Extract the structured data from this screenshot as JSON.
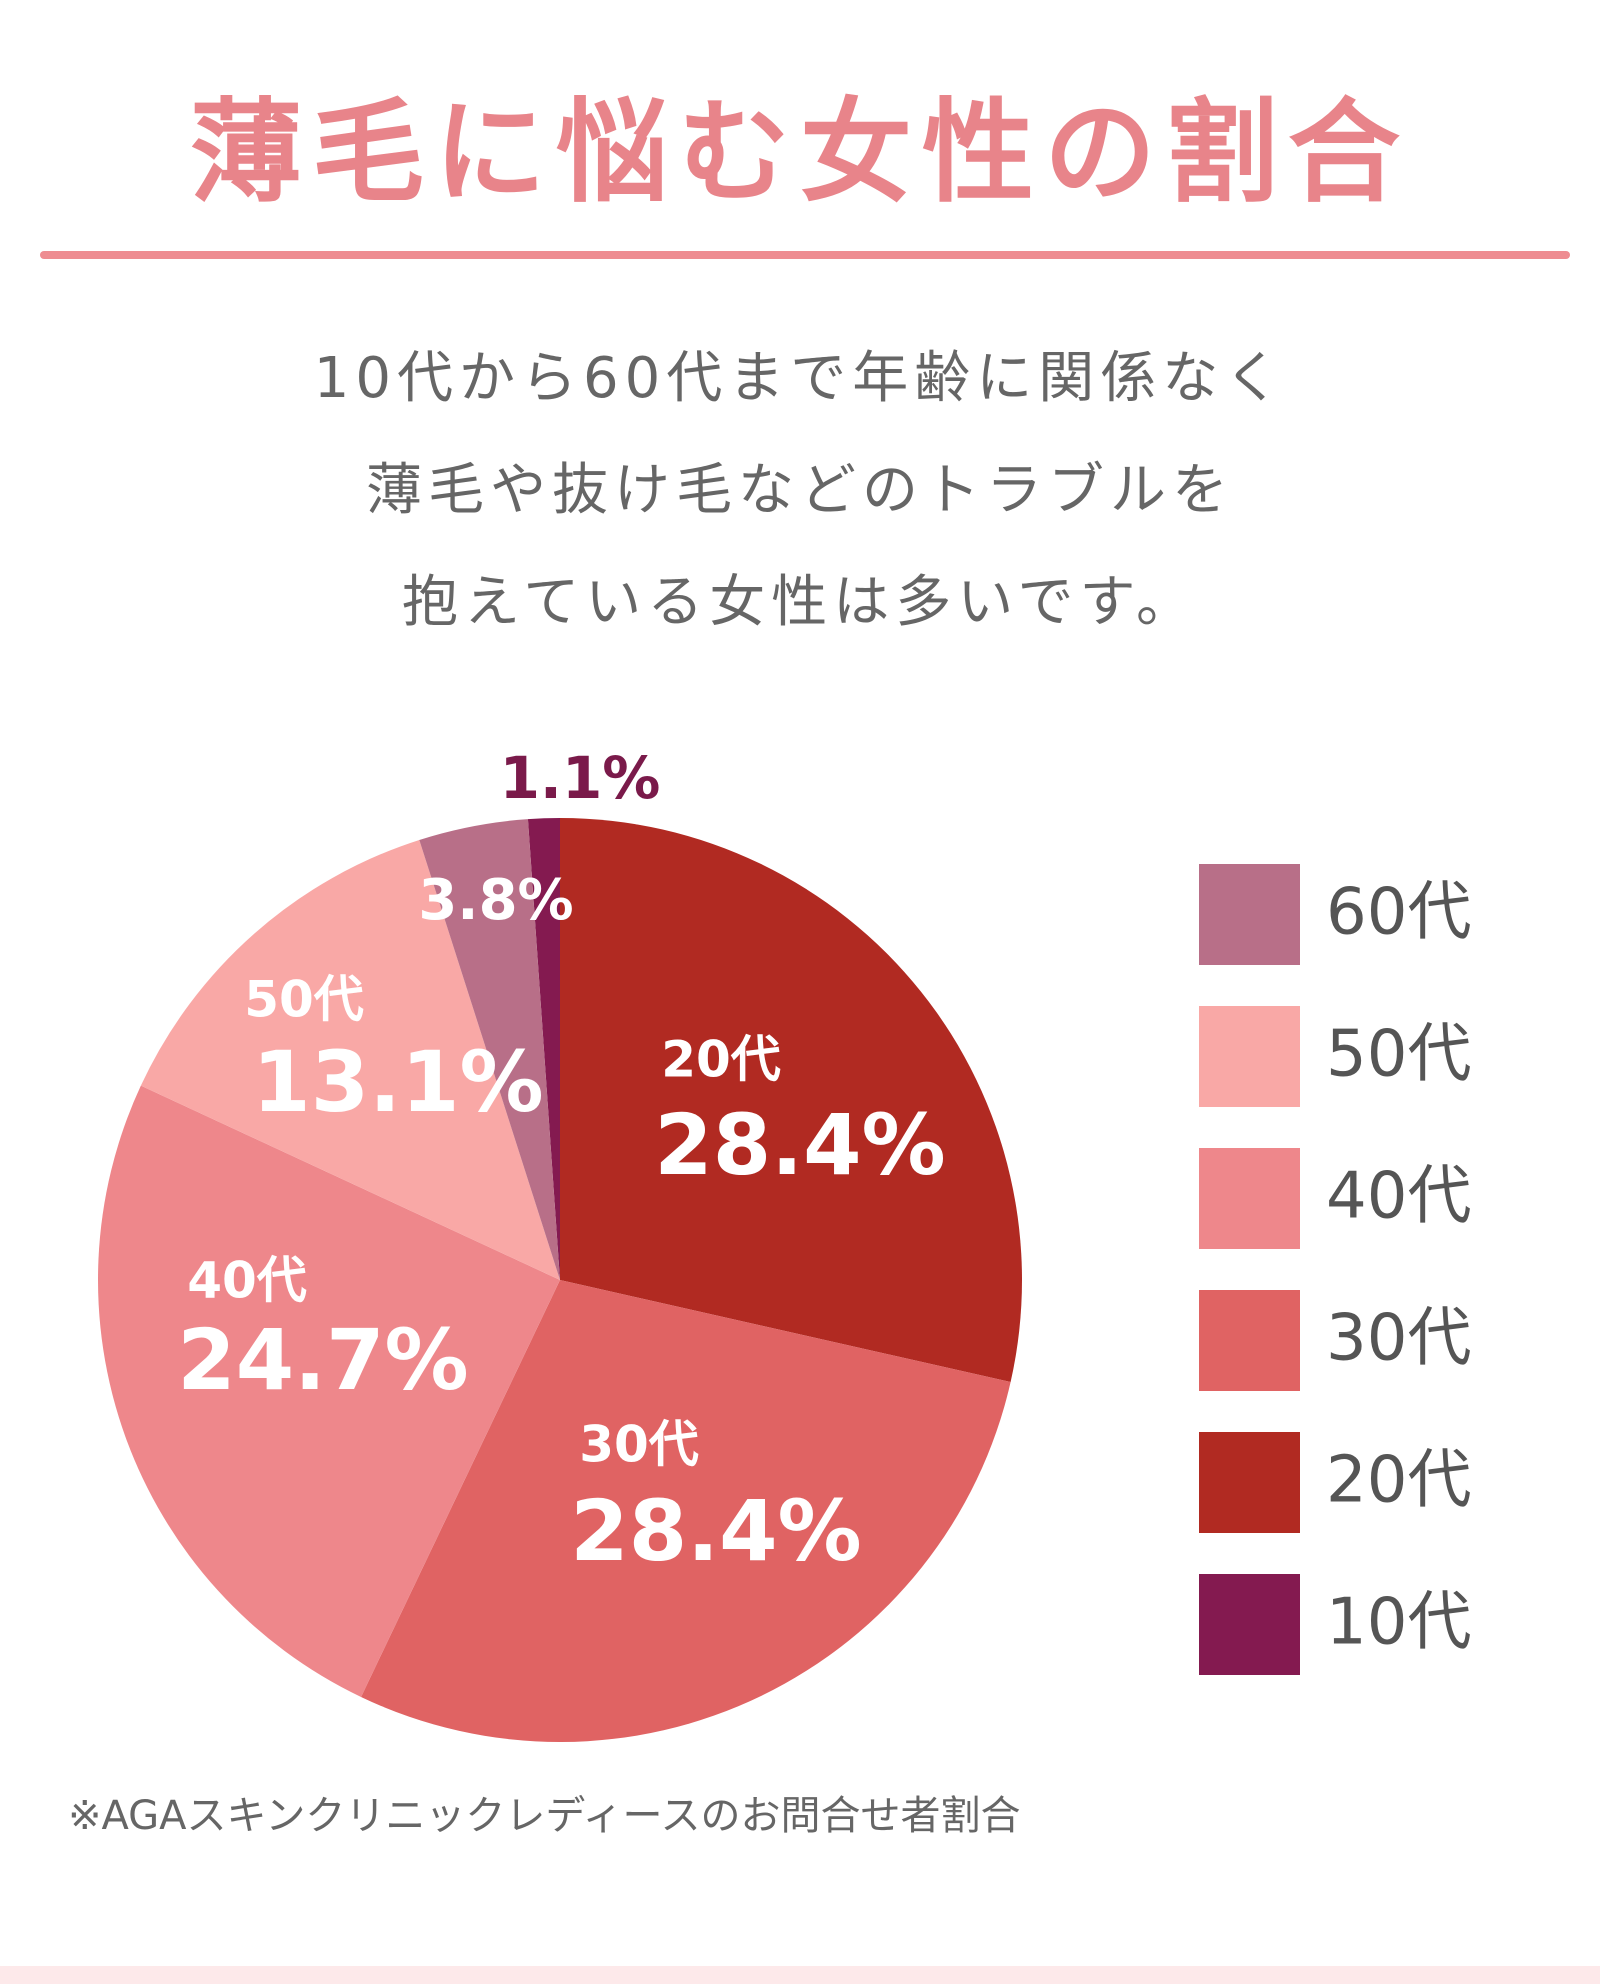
{
  "chart_data": {
    "type": "pie",
    "title": "薄毛に悩む女性の割合",
    "subtitle": [
      "10代から60代まで年齢に関係なく",
      "薄毛や抜け毛などのトラブルを",
      "抱えている女性は多いです。"
    ],
    "categories": [
      "10代",
      "20代",
      "30代",
      "40代",
      "50代",
      "60代"
    ],
    "values": [
      1.1,
      28.4,
      28.4,
      24.7,
      13.1,
      3.8
    ],
    "value_labels": [
      "1.1%",
      "28.4%",
      "28.4%",
      "24.7%",
      "13.1%",
      "3.8%"
    ],
    "colors": [
      "#841a50",
      "#b12a22",
      "#e06363",
      "#ee878b",
      "#f9a8a6",
      "#b86f88"
    ],
    "footnote": "※AGAスキンクリニックレディースのお問合せ者割合"
  }
}
